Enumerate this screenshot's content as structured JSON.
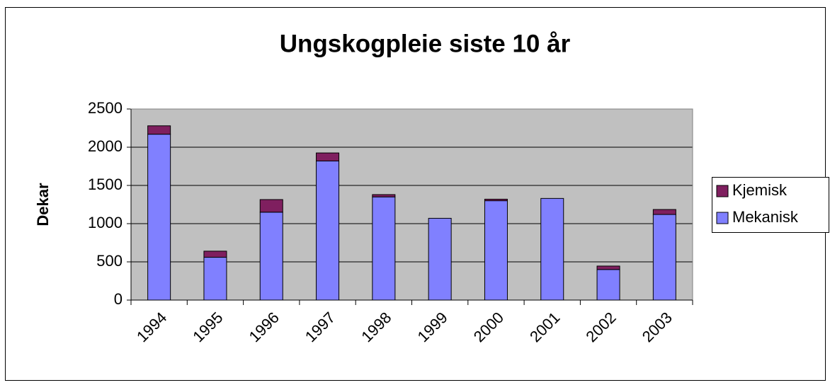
{
  "chart_data": {
    "type": "stacked-bar",
    "title": "Ungskogpleie siste 10 år",
    "y_label": "Dekar",
    "categories": [
      "1994",
      "1995",
      "1996",
      "1997",
      "1998",
      "1999",
      "2000",
      "2001",
      "2002",
      "2003"
    ],
    "series": [
      {
        "name": "Mekanisk",
        "color": "#8080ff",
        "values": [
          2170,
          560,
          1150,
          1820,
          1350,
          1070,
          1300,
          1330,
          400,
          1120
        ]
      },
      {
        "name": "Kjemisk",
        "color": "#7f1f5f",
        "values": [
          110,
          80,
          165,
          105,
          30,
          0,
          20,
          0,
          45,
          65
        ]
      }
    ],
    "ylim": [
      0,
      2500
    ],
    "yticks": [
      0,
      500,
      1000,
      1500,
      2000,
      2500
    ],
    "grid": true
  }
}
